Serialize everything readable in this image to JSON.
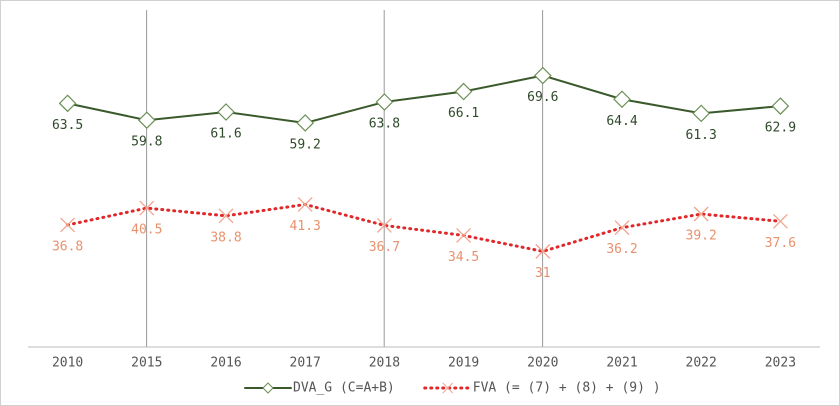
{
  "chart_data": {
    "type": "line",
    "categories": [
      "2010",
      "2015",
      "2016",
      "2017",
      "2018",
      "2019",
      "2020",
      "2021",
      "2022",
      "2023"
    ],
    "series": [
      {
        "name": "DVA_G (C=A+B)",
        "color": "#3b5a2b",
        "marker_color": "#6a8f55",
        "label_color": "#2f4a2a",
        "values": [
          63.5,
          59.8,
          61.6,
          59.2,
          63.8,
          66.1,
          69.6,
          64.4,
          61.3,
          62.9
        ]
      },
      {
        "name": "FVA (= (7) + (8) + (9) )",
        "color": "#e0282a",
        "marker_color": "#f2a48e",
        "label_color": "#e8916c",
        "values": [
          36.8,
          40.5,
          38.8,
          41.3,
          36.7,
          34.5,
          31.0,
          36.2,
          39.2,
          37.6
        ]
      }
    ],
    "ylim": [
      10,
      84
    ]
  }
}
